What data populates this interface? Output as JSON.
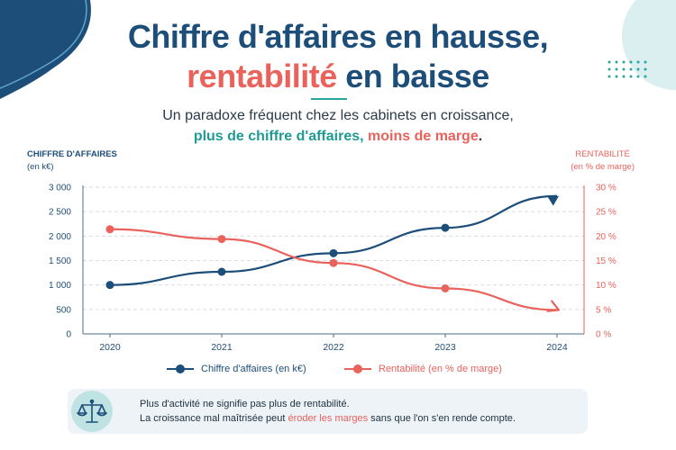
{
  "header": {
    "title_line1": "Chiffre d'affaires en hausse,",
    "title_line2_highlight": "rentabilité",
    "title_line2_rest": " en baisse",
    "subtitle_line1": "Un paradoxe fréquent chez les cabinets en croissance,",
    "subtitle_line2_part1": "plus de chiffre d'affaires,",
    "subtitle_line2_part2": "moins de marge",
    "subtitle_line2_end": "."
  },
  "colors": {
    "navy": "#1d4e79",
    "coral": "#e9625c",
    "teal": "#1f9a94"
  },
  "chart_data": {
    "type": "line",
    "x": [
      "2020",
      "2021",
      "2022",
      "2023",
      "2024"
    ],
    "left_axis": {
      "label": "CHIFFRE D'AFFAIRES",
      "unit": "(en k€)",
      "range": [
        0,
        3000
      ],
      "ticks": [
        0,
        500,
        1000,
        1500,
        2000,
        2500,
        3000
      ],
      "tick_labels": [
        "0",
        "500",
        "1 000",
        "1 500",
        "2 000",
        "2 500",
        "3 000"
      ]
    },
    "right_axis": {
      "label": "RENTABILITÉ",
      "unit": "(en % de marge)",
      "range": [
        0,
        30
      ],
      "ticks": [
        0,
        5,
        10,
        15,
        20,
        25,
        30
      ],
      "tick_labels": [
        "0 %",
        "5 %",
        "10 %",
        "15 %",
        "20 %",
        "25 %",
        "30 %"
      ]
    },
    "series": [
      {
        "name": "Chiffre d'affaires (en k€)",
        "axis": "left",
        "color": "#1d4e79",
        "values": [
          1000,
          1270,
          1650,
          2170,
          2820
        ],
        "end_marker": "arrow"
      },
      {
        "name": "Rentabilité (en % de marge)",
        "axis": "right",
        "color": "#e9625c",
        "values": [
          21.4,
          19.4,
          14.5,
          9.3,
          4.9
        ],
        "end_marker": "arrow"
      }
    ],
    "grid": "horizontal dashed",
    "legend": "bottom"
  },
  "note": {
    "line1": "Plus d'activité ne signifie pas plus de rentabilité.",
    "line2_part1": "La croissance mal maîtrisée peut ",
    "line2_highlight": "éroder les marges",
    "line2_part2": " sans que l'on s'en rende compte.",
    "icon": "balance-scale-icon"
  }
}
